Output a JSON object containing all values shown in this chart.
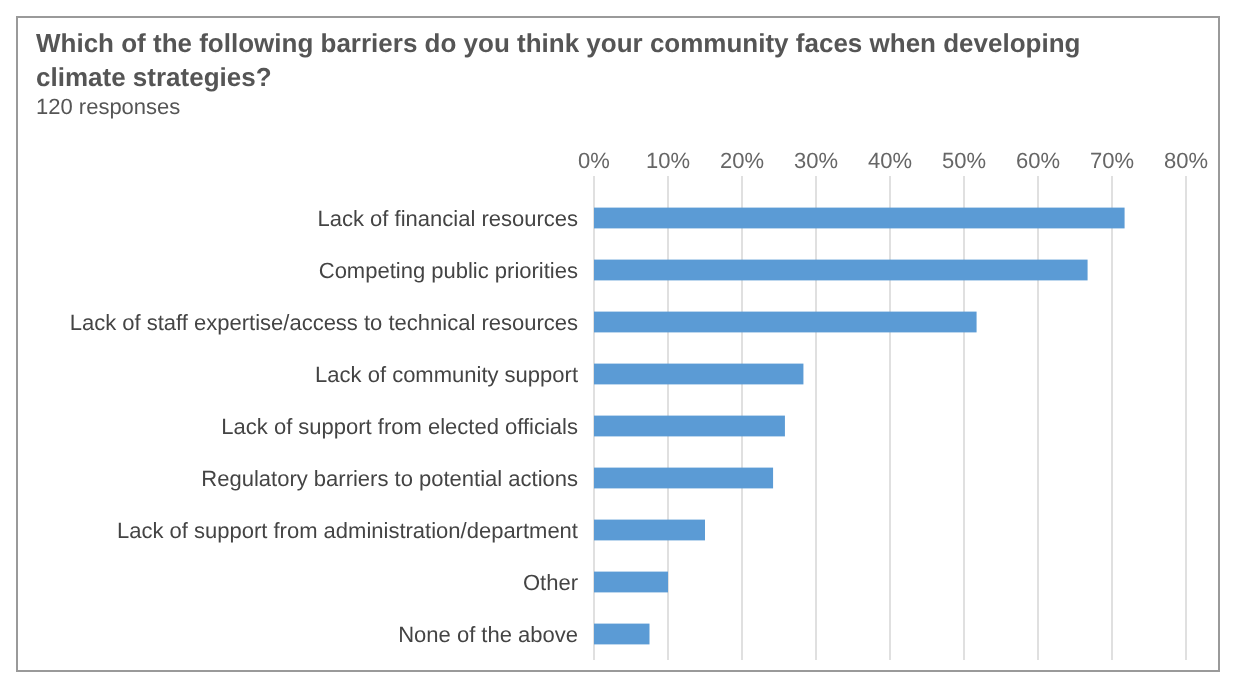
{
  "chart_data": {
    "type": "bar",
    "orientation": "horizontal",
    "title": "Which of the following barriers do you think your community faces when developing climate strategies?",
    "subtitle": "120 responses",
    "categories": [
      "Lack of financial resources",
      "Competing public priorities",
      "Lack of staff expertise/access to technical resources",
      "Lack of community support",
      "Lack of support from elected officials",
      "Regulatory barriers to potential actions",
      "Lack of support from administration/department",
      "Other",
      "None of the above"
    ],
    "values": [
      71.7,
      66.7,
      51.7,
      28.3,
      25.8,
      24.2,
      15,
      10,
      7.5
    ],
    "color": "#5b9bd5",
    "xlim": [
      0,
      80
    ],
    "xticks": [
      {
        "value": 0,
        "label": "0%"
      },
      {
        "value": 10,
        "label": "10%"
      },
      {
        "value": 20,
        "label": "20%"
      },
      {
        "value": 30,
        "label": "30%"
      },
      {
        "value": 40,
        "label": "40%"
      },
      {
        "value": 50,
        "label": "50%"
      },
      {
        "value": 60,
        "label": "60%"
      },
      {
        "value": 70,
        "label": "70%"
      },
      {
        "value": 80,
        "label": "80%"
      }
    ],
    "grid": "x"
  }
}
